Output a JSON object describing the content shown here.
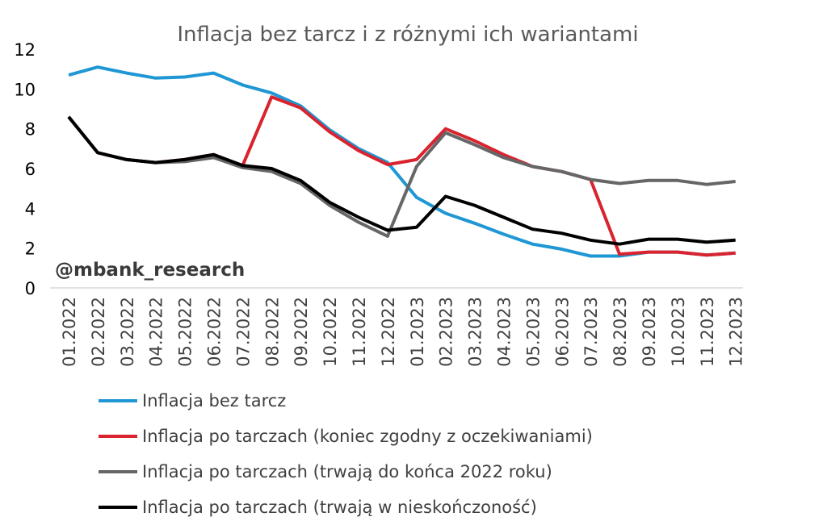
{
  "chart_data": {
    "type": "line",
    "title": "Inflacja bez tarcz i z różnymi ich wariantami",
    "watermark": "@mbank_research",
    "ylim": [
      0,
      12
    ],
    "yticks": [
      0,
      2,
      4,
      6,
      8,
      10,
      12
    ],
    "grid": false,
    "legend_position": "bottom",
    "categories": [
      "01.2022",
      "02.2022",
      "03.2022",
      "04.2022",
      "05.2022",
      "06.2022",
      "07.2022",
      "08.2022",
      "09.2022",
      "10.2022",
      "11.2022",
      "12.2022",
      "01.2023",
      "02.2023",
      "03.2023",
      "04.2023",
      "05.2023",
      "06.2023",
      "07.2023",
      "08.2023",
      "09.2023",
      "10.2023",
      "11.2023",
      "12.2023"
    ],
    "series": [
      {
        "name": "Inflacja bez tarcz",
        "color": "#1f97d4",
        "values": [
          10.7,
          11.1,
          10.8,
          10.55,
          10.6,
          10.8,
          10.2,
          9.8,
          9.15,
          7.95,
          7.0,
          6.3,
          4.55,
          3.75,
          3.25,
          2.7,
          2.2,
          1.95,
          1.6,
          1.6,
          1.8,
          1.8,
          1.65,
          1.75
        ]
      },
      {
        "name": "Inflacja po tarczach (koniec zgodny z oczekiwaniami)",
        "color": "#d9232e",
        "values": [
          8.6,
          6.8,
          6.45,
          6.3,
          6.45,
          6.7,
          6.15,
          9.6,
          9.05,
          7.85,
          6.9,
          6.2,
          6.45,
          8.0,
          7.4,
          6.7,
          6.1,
          5.85,
          5.45,
          1.7,
          1.8,
          1.8,
          1.65,
          1.75
        ]
      },
      {
        "name": "Inflacja po tarczach (trwają do końca 2022 roku)",
        "color": "#666666",
        "values": [
          8.6,
          6.8,
          6.45,
          6.3,
          6.35,
          6.55,
          6.05,
          5.85,
          5.25,
          4.15,
          3.3,
          2.6,
          6.1,
          7.8,
          7.2,
          6.55,
          6.1,
          5.85,
          5.45,
          5.25,
          5.4,
          5.4,
          5.2,
          5.35
        ]
      },
      {
        "name": "Inflacja po tarczach (trwają w nieskończoność)",
        "color": "#000000",
        "values": [
          8.6,
          6.8,
          6.45,
          6.3,
          6.45,
          6.7,
          6.15,
          6.0,
          5.4,
          4.3,
          3.55,
          2.9,
          3.05,
          4.6,
          4.15,
          3.55,
          2.95,
          2.75,
          2.4,
          2.2,
          2.45,
          2.45,
          2.3,
          2.4
        ]
      }
    ]
  }
}
